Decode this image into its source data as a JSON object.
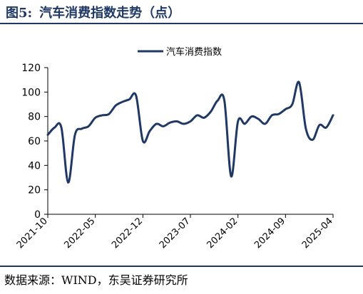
{
  "figure": {
    "number": "图5:",
    "title": "汽车消费指数走势（点）"
  },
  "source": "数据来源：WIND，东吴证券研究所",
  "colors": {
    "line": "#1f3864",
    "axis": "#000000",
    "title": "#1f3864"
  },
  "chart_data": {
    "type": "line",
    "ylim": [
      0,
      120
    ],
    "yticks": [
      0,
      20,
      40,
      60,
      80,
      100,
      120
    ],
    "grid": false,
    "legend_position": "top-center",
    "x_tick_labels": [
      "2021-10",
      "2022-05",
      "2022-12",
      "2023-07",
      "2024-02",
      "2024-09",
      "2025-04"
    ],
    "x_tick_indices": [
      0,
      7,
      14,
      21,
      28,
      35,
      42
    ],
    "x": [
      "2021-10",
      "2021-11",
      "2021-12",
      "2022-01",
      "2022-02",
      "2022-03",
      "2022-04",
      "2022-05",
      "2022-06",
      "2022-07",
      "2022-08",
      "2022-09",
      "2022-10",
      "2022-11",
      "2022-12",
      "2023-01",
      "2023-02",
      "2023-03",
      "2023-04",
      "2023-05",
      "2023-06",
      "2023-07",
      "2023-08",
      "2023-09",
      "2023-10",
      "2023-11",
      "2023-12",
      "2024-01",
      "2024-02",
      "2024-03",
      "2024-04",
      "2024-05",
      "2024-06",
      "2024-07",
      "2024-08",
      "2024-09",
      "2024-10",
      "2024-11",
      "2024-12",
      "2025-01",
      "2025-02",
      "2025-03",
      "2025-04"
    ],
    "series": [
      {
        "name": "汽车消费指数",
        "values": [
          65,
          71,
          71,
          26,
          65,
          70,
          72,
          79,
          81,
          82,
          89,
          92,
          94,
          97,
          60,
          68,
          74,
          72,
          75,
          76,
          74,
          76,
          81,
          79,
          84,
          93,
          93,
          31,
          76,
          74,
          80,
          78,
          74,
          81,
          82,
          86,
          90,
          108,
          70,
          61,
          73,
          71,
          81
        ]
      }
    ]
  }
}
